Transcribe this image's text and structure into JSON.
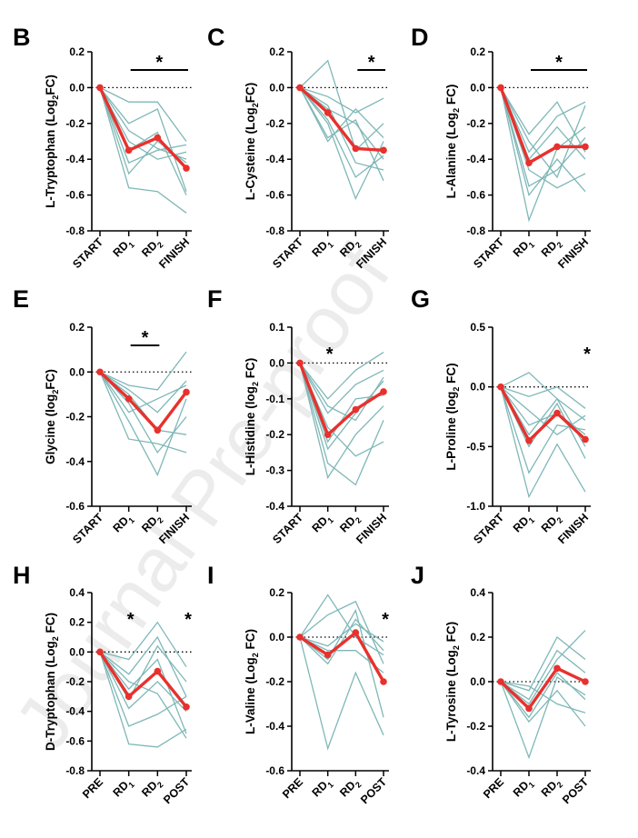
{
  "watermark": "Journal Pre-proof",
  "colors": {
    "individual": "#7fb7b7",
    "mean": "#e8312d",
    "axis": "#000000"
  },
  "chart_data": [
    {
      "panel": "B",
      "type": "line",
      "ylabel": {
        "pre": "L-Tryptophan (Log",
        "sub": "2",
        "post": "FC)"
      },
      "categories": [
        {
          "text": "START"
        },
        {
          "text": "RD",
          "sub": "1"
        },
        {
          "text": "RD",
          "sub": "2"
        },
        {
          "text": "FINISH"
        }
      ],
      "ylim": [
        -0.8,
        0.2
      ],
      "yticks": [
        0.2,
        0.0,
        -0.2,
        -0.4,
        -0.6,
        -0.8
      ],
      "tick_labels": [
        "0.2",
        "0.0",
        "-0.2",
        "-0.4",
        "-0.6",
        "-0.8"
      ],
      "significance": [
        {
          "label": "*",
          "bar": [
            1,
            3
          ]
        }
      ],
      "mean": [
        0,
        -0.35,
        -0.28,
        -0.45
      ],
      "individuals": [
        [
          0,
          -0.08,
          -0.08,
          -0.3
        ],
        [
          0,
          -0.2,
          -0.12,
          -0.58
        ],
        [
          0,
          -0.3,
          -0.4,
          -0.36
        ],
        [
          0,
          -0.42,
          -0.35,
          -0.32
        ],
        [
          0,
          -0.48,
          -0.3,
          -0.42
        ],
        [
          0,
          -0.56,
          -0.58,
          -0.7
        ],
        [
          0,
          -0.35,
          -0.25,
          -0.6
        ],
        [
          0,
          -0.24,
          -0.34,
          -0.4
        ]
      ]
    },
    {
      "panel": "C",
      "type": "line",
      "ylabel": {
        "pre": "L-Cysteine (Log",
        "sub": "2",
        "post": "FC)"
      },
      "categories": [
        {
          "text": "START"
        },
        {
          "text": "RD",
          "sub": "1"
        },
        {
          "text": "RD",
          "sub": "2"
        },
        {
          "text": "FINISH"
        }
      ],
      "ylim": [
        -0.8,
        0.2
      ],
      "yticks": [
        0.2,
        0.0,
        -0.2,
        -0.4,
        -0.6,
        -0.8
      ],
      "tick_labels": [
        "0.2",
        "0.0",
        "-0.2",
        "-0.4",
        "-0.6",
        "-0.8"
      ],
      "significance": [
        {
          "label": "*",
          "bar": [
            2,
            3
          ]
        }
      ],
      "mean": [
        0,
        -0.14,
        -0.34,
        -0.35
      ],
      "individuals": [
        [
          0,
          0.15,
          -0.35,
          -0.2
        ],
        [
          0,
          -0.05,
          -0.14,
          -0.06
        ],
        [
          0,
          -0.12,
          -0.2,
          -0.4
        ],
        [
          0,
          -0.2,
          -0.62,
          -0.3
        ],
        [
          0,
          -0.28,
          -0.18,
          -0.52
        ],
        [
          0,
          -0.1,
          -0.42,
          -0.46
        ],
        [
          0,
          -0.3,
          -0.12,
          -0.28
        ],
        [
          0,
          -0.18,
          -0.5,
          -0.38
        ]
      ]
    },
    {
      "panel": "D",
      "type": "line",
      "ylabel": {
        "pre": "L-Alanine (Log",
        "sub": "2",
        "post": " FC)"
      },
      "categories": [
        {
          "text": "START"
        },
        {
          "text": "RD",
          "sub": "1"
        },
        {
          "text": "RD",
          "sub": "2"
        },
        {
          "text": "FINISH"
        }
      ],
      "ylim": [
        -0.8,
        0.2
      ],
      "yticks": [
        0.2,
        0.0,
        -0.2,
        -0.4,
        -0.6,
        -0.8
      ],
      "tick_labels": [
        "0.2",
        "0.0",
        "-0.2",
        "-0.4",
        "-0.6",
        "-0.8"
      ],
      "significance": [
        {
          "label": "*",
          "bar": [
            1,
            3
          ]
        }
      ],
      "mean": [
        0,
        -0.42,
        -0.33,
        -0.33
      ],
      "individuals": [
        [
          0,
          -0.26,
          -0.08,
          -0.36
        ],
        [
          0,
          -0.36,
          -0.16,
          -0.08
        ],
        [
          0,
          -0.74,
          -0.34,
          -0.22
        ],
        [
          0,
          -0.46,
          -0.56,
          -0.48
        ],
        [
          0,
          -0.6,
          -0.4,
          -0.58
        ],
        [
          0,
          -0.3,
          -0.5,
          -0.1
        ],
        [
          0,
          -0.4,
          -0.22,
          -0.4
        ],
        [
          0,
          -0.55,
          -0.46,
          -0.28
        ]
      ]
    },
    {
      "panel": "E",
      "type": "line",
      "ylabel": {
        "pre": "Glycine (log",
        "sub": "2",
        "post": "FC)"
      },
      "categories": [
        {
          "text": "START"
        },
        {
          "text": "RD",
          "sub": "1"
        },
        {
          "text": "RD",
          "sub": "2"
        },
        {
          "text": "FINISH"
        }
      ],
      "ylim": [
        -0.6,
        0.2
      ],
      "yticks": [
        0.2,
        0.0,
        -0.2,
        -0.4,
        -0.6
      ],
      "tick_labels": [
        "0.2",
        "0.0",
        "-0.2",
        "-0.4",
        "-0.6"
      ],
      "significance": [
        {
          "label": "*",
          "bar": [
            1,
            2
          ]
        }
      ],
      "mean": [
        0,
        -0.12,
        -0.26,
        -0.09
      ],
      "individuals": [
        [
          0,
          -0.06,
          -0.08,
          0.09
        ],
        [
          0,
          -0.08,
          -0.18,
          -0.04
        ],
        [
          0,
          -0.14,
          -0.36,
          -0.2
        ],
        [
          0,
          -0.22,
          -0.46,
          -0.12
        ],
        [
          0,
          -0.3,
          -0.32,
          -0.36
        ],
        [
          0,
          -0.1,
          -0.26,
          -0.28
        ],
        [
          0,
          -0.18,
          -0.12,
          -0.06
        ]
      ]
    },
    {
      "panel": "F",
      "type": "line",
      "ylabel": {
        "pre": "L-Histidine (log",
        "sub": "2",
        "post": " FC)"
      },
      "categories": [
        {
          "text": "START"
        },
        {
          "text": "RD",
          "sub": "1"
        },
        {
          "text": "RD",
          "sub": "2"
        },
        {
          "text": "FINISH"
        }
      ],
      "ylim": [
        -0.4,
        0.1
      ],
      "yticks": [
        0.1,
        0.0,
        -0.1,
        -0.2,
        -0.3,
        -0.4
      ],
      "tick_labels": [
        "0.1",
        "0.0",
        "-0.1",
        "-0.2",
        "-0.3",
        "-0.4"
      ],
      "significance": [
        {
          "label": "*",
          "at": 1
        }
      ],
      "mean": [
        0,
        -0.2,
        -0.13,
        -0.08
      ],
      "individuals": [
        [
          0,
          -0.1,
          -0.02,
          0.03
        ],
        [
          0,
          -0.14,
          -0.06,
          -0.02
        ],
        [
          0,
          -0.24,
          -0.14,
          -0.05
        ],
        [
          0,
          -0.32,
          -0.2,
          -0.12
        ],
        [
          0,
          -0.28,
          -0.34,
          -0.16
        ],
        [
          0,
          -0.18,
          -0.26,
          -0.22
        ],
        [
          0,
          -0.22,
          -0.1,
          -0.09
        ],
        [
          0,
          -0.12,
          -0.16,
          -0.04
        ]
      ]
    },
    {
      "panel": "G",
      "type": "line",
      "ylabel": {
        "pre": "L-Proline (log",
        "sub": "2",
        "post": " FC)"
      },
      "categories": [
        {
          "text": "START"
        },
        {
          "text": "RD",
          "sub": "1"
        },
        {
          "text": "RD",
          "sub": "2"
        },
        {
          "text": "FINISH"
        }
      ],
      "ylim": [
        -1.0,
        0.5
      ],
      "yticks": [
        0.5,
        0.0,
        -0.5,
        -1.0
      ],
      "tick_labels": [
        "0.5",
        "0.0",
        "-0.5",
        "-1.0"
      ],
      "significance": [
        {
          "label": "*",
          "at": 3
        }
      ],
      "mean": [
        0,
        -0.45,
        -0.22,
        -0.44
      ],
      "individuals": [
        [
          0,
          0.12,
          -0.1,
          -0.28
        ],
        [
          0,
          -0.08,
          0.0,
          -0.18
        ],
        [
          0,
          -0.32,
          -0.22,
          -0.4
        ],
        [
          0,
          -0.5,
          -0.14,
          -0.6
        ],
        [
          0,
          -0.72,
          -0.32,
          -0.36
        ],
        [
          0,
          -0.92,
          -0.48,
          -0.88
        ],
        [
          0,
          -0.2,
          -0.4,
          -0.24
        ],
        [
          0,
          -0.4,
          -0.1,
          -0.5
        ]
      ]
    },
    {
      "panel": "H",
      "type": "line",
      "ylabel": {
        "pre": "D-Tryptophan (Log",
        "sub": "2",
        "post": " FC)"
      },
      "categories": [
        {
          "text": "PRE"
        },
        {
          "text": "RD",
          "sub": "1"
        },
        {
          "text": "RD",
          "sub": "2"
        },
        {
          "text": "POST"
        }
      ],
      "ylim": [
        -0.8,
        0.4
      ],
      "yticks": [
        0.4,
        0.2,
        0.0,
        -0.2,
        -0.4,
        -0.6,
        -0.8
      ],
      "tick_labels": [
        "0.4",
        "0.2",
        "0.0",
        "-0.2",
        "-0.4",
        "-0.6",
        "-0.8"
      ],
      "significance": [
        {
          "label": "*",
          "at": 1
        },
        {
          "label": "*",
          "at": 3
        }
      ],
      "mean": [
        0,
        -0.3,
        -0.13,
        -0.37
      ],
      "individuals": [
        [
          0,
          -0.05,
          0.2,
          -0.1
        ],
        [
          0,
          -0.15,
          0.1,
          -0.3
        ],
        [
          0,
          -0.25,
          -0.05,
          -0.55
        ],
        [
          0,
          -0.38,
          -0.2,
          -0.4
        ],
        [
          0,
          -0.5,
          -0.42,
          -0.3
        ],
        [
          0,
          -0.62,
          -0.64,
          -0.52
        ],
        [
          0,
          -0.2,
          -0.28,
          -0.58
        ],
        [
          0,
          -0.32,
          0.04,
          -0.2
        ]
      ]
    },
    {
      "panel": "I",
      "type": "line",
      "ylabel": {
        "pre": "L-Valine (Log",
        "sub": "2",
        "post": " FC)"
      },
      "categories": [
        {
          "text": "PRE"
        },
        {
          "text": "RD",
          "sub": "1"
        },
        {
          "text": "RD",
          "sub": "2"
        },
        {
          "text": "POST"
        }
      ],
      "ylim": [
        -0.6,
        0.2
      ],
      "yticks": [
        0.2,
        0.0,
        -0.2,
        -0.4,
        -0.6
      ],
      "tick_labels": [
        "0.2",
        "0.0",
        "-0.2",
        "-0.4",
        "-0.6"
      ],
      "significance": [
        {
          "label": "*",
          "at": 3
        }
      ],
      "mean": [
        0,
        -0.08,
        0.02,
        -0.2
      ],
      "individuals": [
        [
          0,
          0.19,
          0.0,
          -0.08
        ],
        [
          0,
          0.1,
          0.16,
          -0.12
        ],
        [
          0,
          -0.5,
          -0.16,
          -0.44
        ],
        [
          0,
          -0.04,
          0.06,
          -0.02
        ],
        [
          0,
          -0.1,
          0.12,
          -0.36
        ],
        [
          0,
          -0.06,
          -0.06,
          -0.16
        ],
        [
          0,
          -0.12,
          0.08,
          -0.06
        ]
      ]
    },
    {
      "panel": "J",
      "type": "line",
      "ylabel": {
        "pre": "L-Tyrosine (Log",
        "sub": "2",
        "post": " FC)"
      },
      "categories": [
        {
          "text": "PRE"
        },
        {
          "text": "RD",
          "sub": "1"
        },
        {
          "text": "RD",
          "sub": "2"
        },
        {
          "text": "POST"
        }
      ],
      "ylim": [
        -0.4,
        0.4
      ],
      "yticks": [
        0.4,
        0.2,
        0.0,
        -0.2,
        -0.4
      ],
      "tick_labels": [
        "0.4",
        "0.2",
        "0.0",
        "-0.2",
        "-0.4"
      ],
      "significance": [],
      "mean": [
        0,
        -0.12,
        0.06,
        0.0
      ],
      "individuals": [
        [
          0,
          -0.04,
          0.2,
          0.1
        ],
        [
          0,
          -0.1,
          0.1,
          0.23
        ],
        [
          0,
          -0.16,
          0.04,
          -0.08
        ],
        [
          0,
          -0.34,
          0.02,
          -0.06
        ],
        [
          0,
          -0.18,
          -0.04,
          -0.2
        ],
        [
          0,
          -0.08,
          0.14,
          0.04
        ],
        [
          0,
          -0.02,
          -0.1,
          -0.14
        ]
      ]
    }
  ]
}
